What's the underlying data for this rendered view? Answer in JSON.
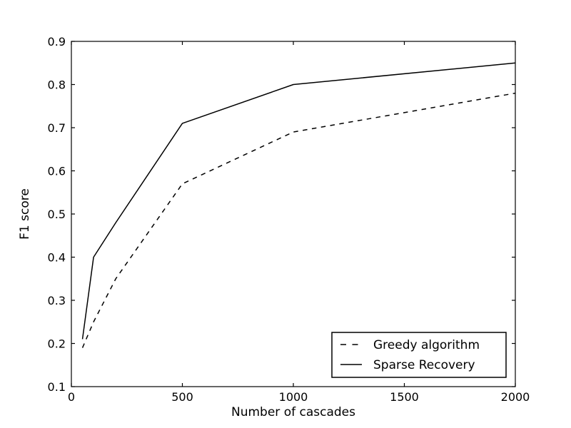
{
  "figure": {
    "background_color": "#ffffff",
    "axis_color": "#000000",
    "text_color": "#000000"
  },
  "chart_data": {
    "type": "line",
    "title": "",
    "xlabel": "Number of cascades",
    "ylabel": "F1 score",
    "xlim": [
      0,
      2000
    ],
    "ylim": [
      0.1,
      0.9
    ],
    "x_ticks": [
      0,
      500,
      1000,
      1500,
      2000
    ],
    "y_ticks": [
      0.1,
      0.2,
      0.3,
      0.4,
      0.5,
      0.6,
      0.7,
      0.8,
      0.9
    ],
    "grid": false,
    "legend_position": "lower right",
    "series": [
      {
        "name": "Greedy algorithm",
        "style": "dashed",
        "color": "#000000",
        "x": [
          50,
          100,
          200,
          500,
          1000,
          2000
        ],
        "y": [
          0.19,
          0.25,
          0.35,
          0.57,
          0.69,
          0.78
        ]
      },
      {
        "name": "Sparse Recovery",
        "style": "solid",
        "color": "#000000",
        "x": [
          50,
          100,
          200,
          500,
          1000,
          2000
        ],
        "y": [
          0.21,
          0.4,
          0.48,
          0.71,
          0.8,
          0.85
        ]
      }
    ]
  }
}
